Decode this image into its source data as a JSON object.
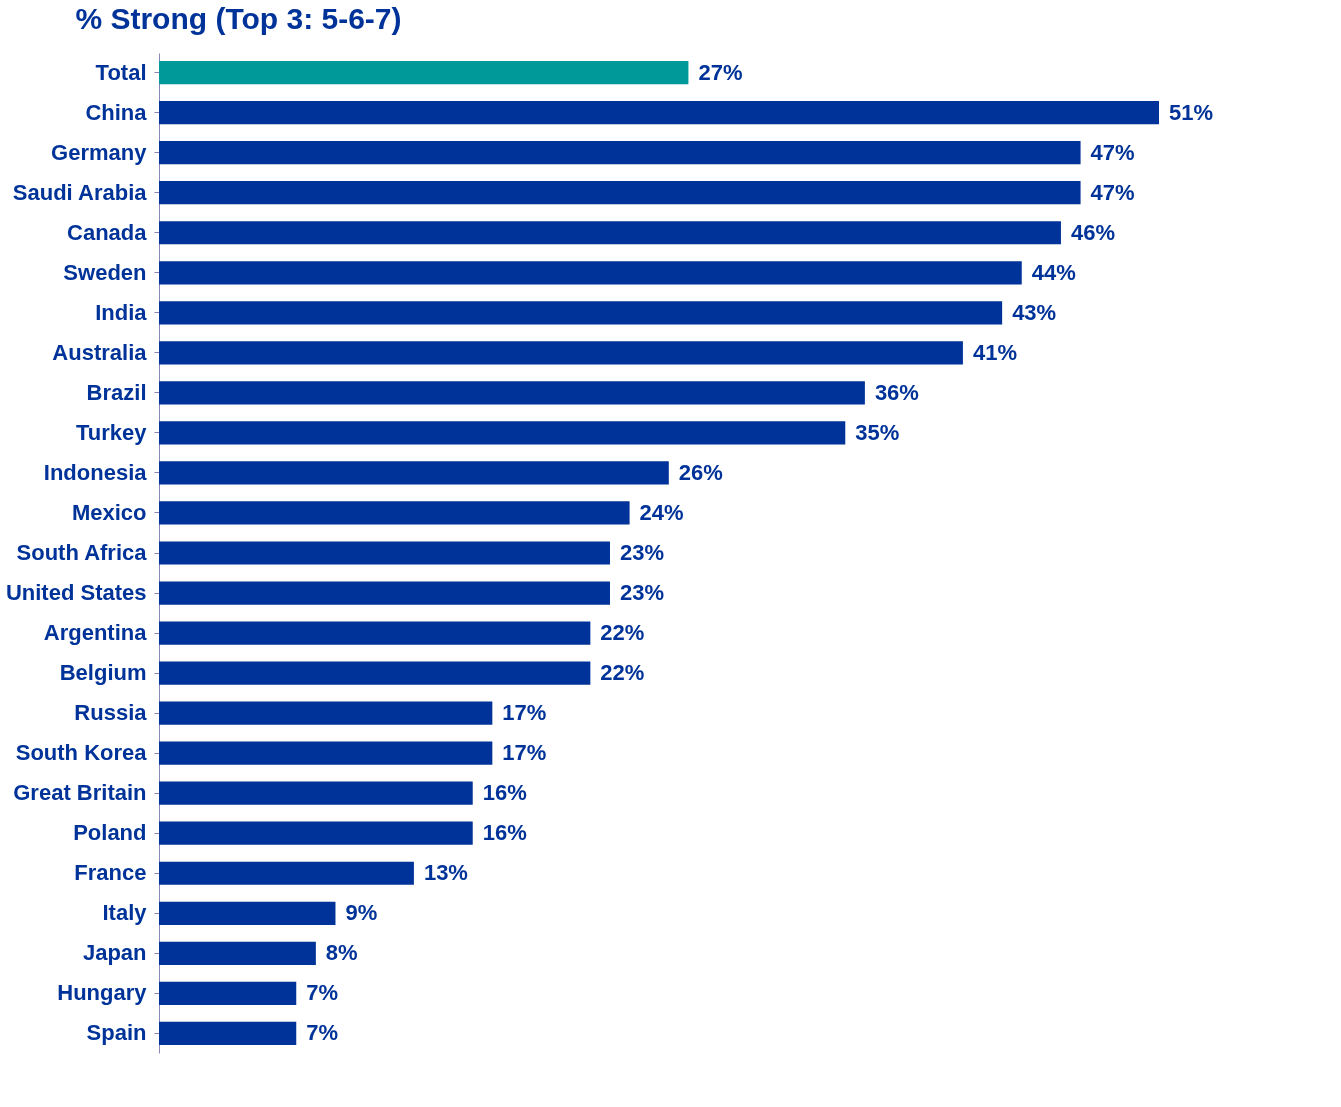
{
  "chart_data": {
    "type": "bar",
    "orientation": "horizontal",
    "title": "% Strong (Top 3: 5-6-7)",
    "categories": [
      "Total",
      "China",
      "Germany",
      "Saudi Arabia",
      "Canada",
      "Sweden",
      "India",
      "Australia",
      "Brazil",
      "Turkey",
      "Indonesia",
      "Mexico",
      "South Africa",
      "United States",
      "Argentina",
      "Belgium",
      "Russia",
      "South Korea",
      "Great Britain",
      "Poland",
      "France",
      "Italy",
      "Japan",
      "Hungary",
      "Spain"
    ],
    "values": [
      27,
      51,
      47,
      47,
      46,
      44,
      43,
      41,
      36,
      35,
      26,
      24,
      23,
      23,
      22,
      22,
      17,
      17,
      16,
      16,
      13,
      9,
      8,
      7,
      7
    ],
    "value_labels": [
      "27%",
      "51%",
      "47%",
      "47%",
      "46%",
      "44%",
      "43%",
      "41%",
      "36%",
      "35%",
      "26%",
      "24%",
      "23%",
      "23%",
      "22%",
      "22%",
      "17%",
      "17%",
      "16%",
      "16%",
      "13%",
      "9%",
      "8%",
      "7%",
      "7%"
    ],
    "colors": [
      "#009999",
      "#003399",
      "#003399",
      "#003399",
      "#003399",
      "#003399",
      "#003399",
      "#003399",
      "#003399",
      "#003399",
      "#003399",
      "#003399",
      "#003399",
      "#003399",
      "#003399",
      "#003399",
      "#003399",
      "#003399",
      "#003399",
      "#003399",
      "#003399",
      "#003399",
      "#003399",
      "#003399",
      "#003399"
    ]
  }
}
